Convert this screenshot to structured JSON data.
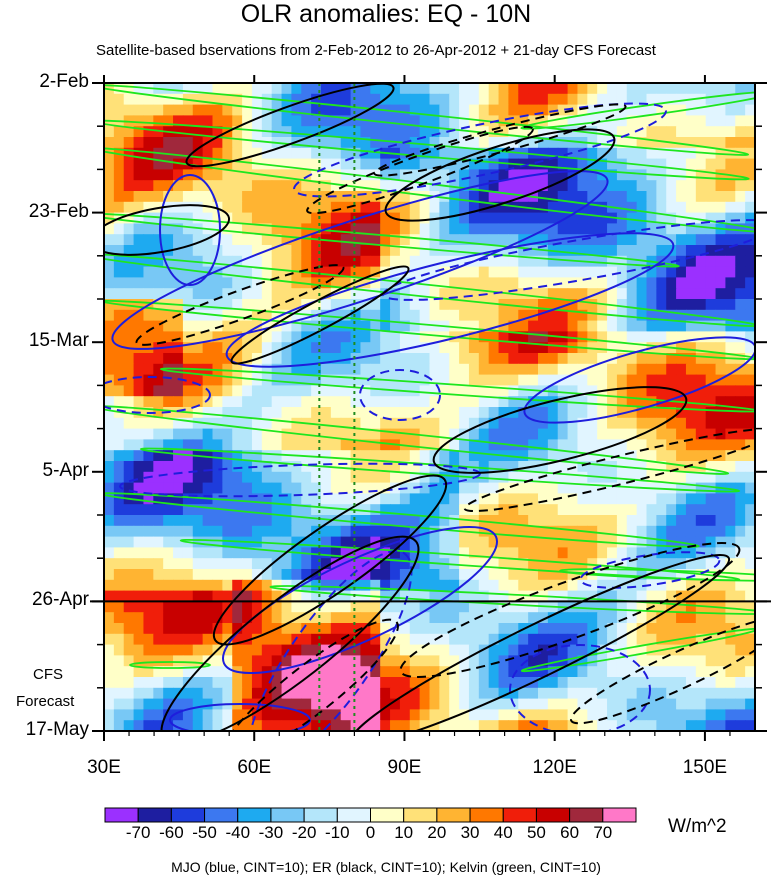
{
  "chart_data": {
    "type": "heatmap",
    "title": "OLR anomalies: EQ - 10N",
    "subtitle": "Satellite-based bservations from 2-Feb-2012 to 26-Apr-2012 + 21-day CFS Forecast",
    "x_ticks": [
      "30E",
      "60E",
      "90E",
      "120E",
      "150E"
    ],
    "x_tick_values": [
      30,
      60,
      90,
      120,
      150
    ],
    "xlim": [
      30,
      160
    ],
    "y_ticks": [
      "2-Feb",
      "23-Feb",
      "15-Mar",
      "5-Apr",
      "26-Apr",
      "17-May"
    ],
    "y_tick_values": [
      "2012-02-02",
      "2012-02-23",
      "2012-03-15",
      "2012-04-05",
      "2012-04-26",
      "2012-05-17"
    ],
    "ylim": [
      "2012-02-02",
      "2012-05-17"
    ],
    "observation_end": "2012-04-26",
    "forecast_label_line1": "CFS",
    "forecast_label_line2": "Forecast",
    "reference_lon_lines": [
      73,
      80
    ],
    "colorbar": {
      "labels": [
        "-70",
        "-60",
        "-50",
        "-40",
        "-30",
        "-20",
        "-10",
        "0",
        "10",
        "20",
        "30",
        "40",
        "50",
        "60",
        "70"
      ],
      "label_values": [
        -70,
        -60,
        -50,
        -40,
        -30,
        -20,
        -10,
        0,
        10,
        20,
        30,
        40,
        50,
        60,
        70
      ],
      "colors": [
        "#9b30ff",
        "#1e1ea0",
        "#1e3cdc",
        "#3c78f0",
        "#1eaaf0",
        "#78c8f5",
        "#b4e6fa",
        "#e1f5ff",
        "#ffffc8",
        "#ffe178",
        "#ffb432",
        "#ff7800",
        "#f01e0a",
        "#c80000",
        "#a0283c",
        "#ff78c8"
      ],
      "units": "W/m^2"
    },
    "contour_note": "MJO (blue, CINT=10); ER (black, CINT=10); Kelvin (green, CINT=10)",
    "contour_colors": {
      "MJO": "#1e1edc",
      "ER": "#000000",
      "Kelvin": "#1ee61e"
    }
  }
}
